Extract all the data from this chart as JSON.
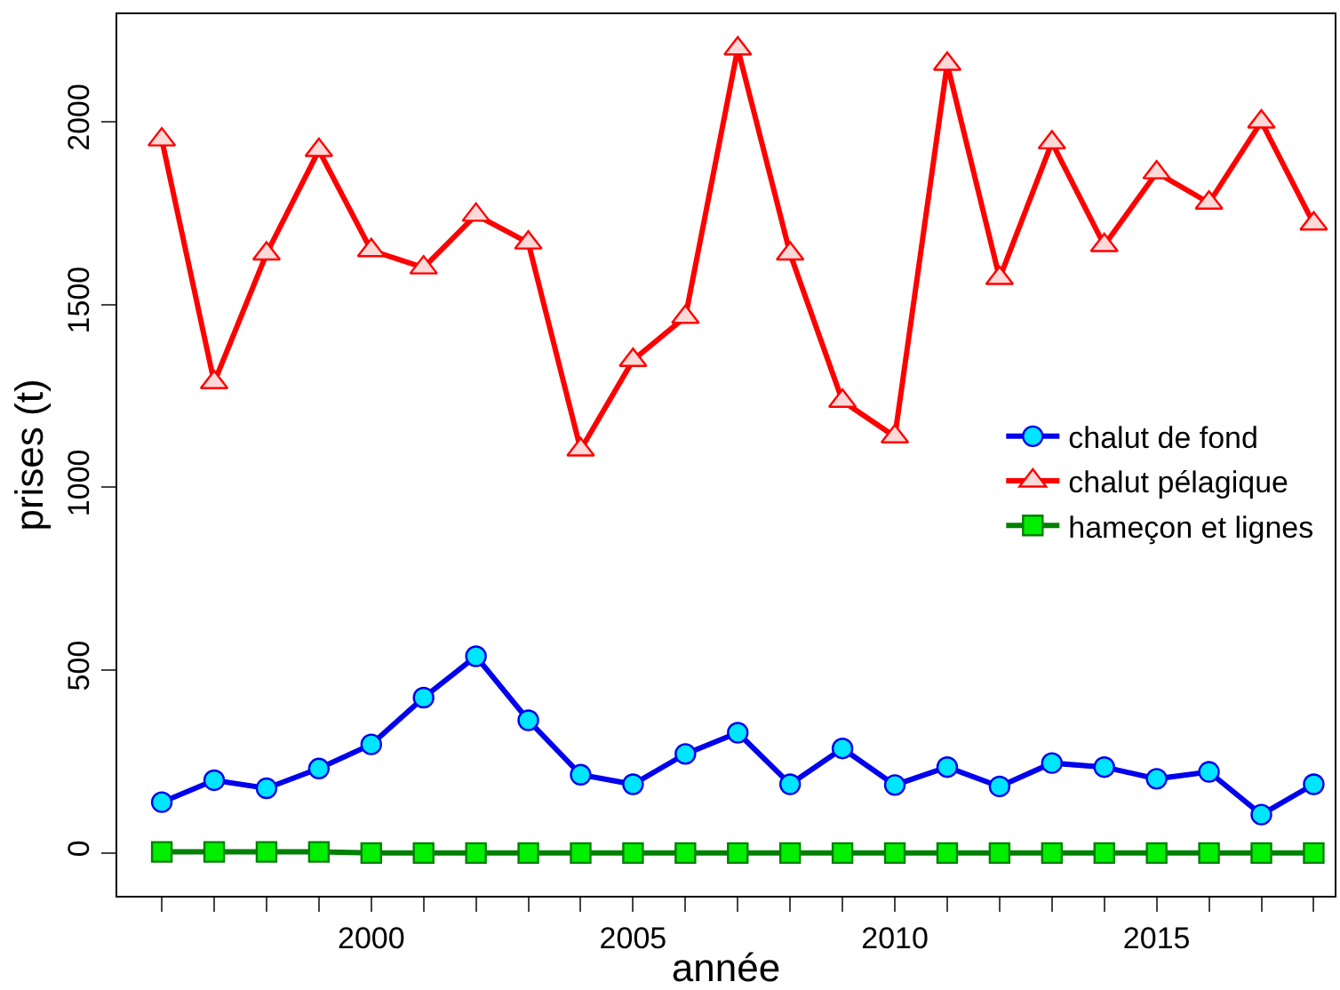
{
  "chart_data": {
    "type": "line",
    "xlabel": "année",
    "ylabel": "prises (t)",
    "x": [
      1996,
      1997,
      1998,
      1999,
      2000,
      2001,
      2002,
      2003,
      2004,
      2005,
      2006,
      2007,
      2008,
      2009,
      2010,
      2011,
      2012,
      2013,
      2014,
      2015,
      2016,
      2017,
      2018
    ],
    "series": [
      {
        "name": "chalut de fond",
        "color": "#0000ee",
        "marker": "circle",
        "values": [
          139,
          199,
          177,
          231,
          297,
          425,
          538,
          363,
          214,
          188,
          271,
          329,
          188,
          286,
          186,
          235,
          182,
          246,
          235,
          203,
          222,
          105,
          188
        ]
      },
      {
        "name": "chalut pélagique",
        "color": "#ff0000",
        "marker": "triangle",
        "values": [
          1951,
          1287,
          1639,
          1922,
          1648,
          1601,
          1745,
          1669,
          1103,
          1348,
          1466,
          2200,
          1639,
          1236,
          1139,
          2158,
          1572,
          1943,
          1662,
          1861,
          1778,
          2000,
          1721
        ]
      },
      {
        "name": "hameçon et lignes",
        "color": "#008000",
        "marker": "square",
        "values": [
          3,
          3,
          3,
          3,
          0,
          0,
          0,
          0,
          0,
          0,
          0,
          0,
          0,
          0,
          0,
          0,
          0,
          0,
          0,
          0,
          0,
          0,
          0
        ]
      }
    ],
    "xlim": [
      1995.15,
      2018.4
    ],
    "ylim": [
      -117,
      2294
    ],
    "xticks": [
      {
        "value": 1996,
        "label": null
      },
      {
        "value": 1997,
        "label": null
      },
      {
        "value": 1998,
        "label": null
      },
      {
        "value": 1999,
        "label": null
      },
      2000,
      {
        "value": 2001,
        "label": null
      },
      {
        "value": 2002,
        "label": null
      },
      {
        "value": 2003,
        "label": null
      },
      {
        "value": 2004,
        "label": null
      },
      2005,
      {
        "value": 2006,
        "label": null
      },
      {
        "value": 2007,
        "label": null
      },
      {
        "value": 2008,
        "label": null
      },
      {
        "value": 2009,
        "label": null
      },
      2010,
      {
        "value": 2011,
        "label": null
      },
      {
        "value": 2012,
        "label": null
      },
      {
        "value": 2013,
        "label": null
      },
      {
        "value": 2014,
        "label": null
      },
      2015,
      {
        "value": 2016,
        "label": null
      },
      {
        "value": 2017,
        "label": null
      },
      {
        "value": 2018,
        "label": null
      }
    ],
    "yticks": [
      0,
      500,
      1000,
      1500,
      2000
    ],
    "legend": "right",
    "line_style": "solid"
  }
}
